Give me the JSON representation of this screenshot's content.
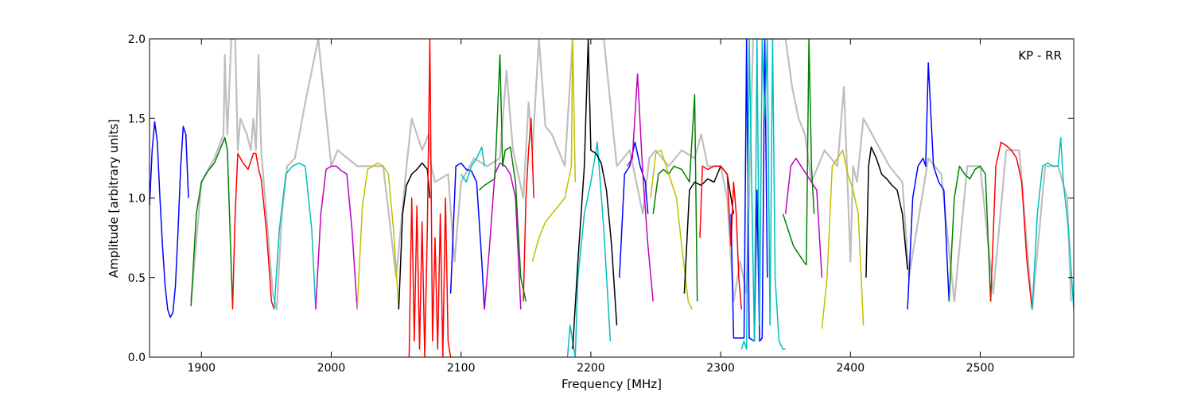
{
  "chart_data": {
    "type": "line",
    "title": "",
    "xlabel": "Frequency [MHz]",
    "ylabel": "Amplitude [arbitrary units]",
    "annotation": "KP - RR",
    "xlim": [
      1860,
      2572
    ],
    "ylim": [
      0.0,
      2.0
    ],
    "xticks": [
      1900,
      2000,
      2100,
      2200,
      2300,
      2400,
      2500
    ],
    "yticks": [
      0.0,
      0.5,
      1.0,
      1.5,
      2.0
    ],
    "ytick_labels": [
      "0.0",
      "0.5",
      "1.0",
      "1.5",
      "2.0"
    ],
    "grid": false,
    "background": {
      "color": "#bfbfbf",
      "x": [
        1892,
        1900,
        1910,
        1917,
        1918,
        1919,
        1920,
        1923,
        1926,
        1928,
        1930,
        1935,
        1938,
        1940,
        1942,
        1944,
        1946,
        1950,
        1955,
        1958,
        1962,
        1966,
        1972,
        1980,
        1990,
        2000,
        2005,
        2020,
        2040,
        2050,
        2058,
        2062,
        2070,
        2075,
        2077,
        2080,
        2090,
        2095,
        2100,
        2110,
        2120,
        2130,
        2135,
        2140,
        2148,
        2152,
        2155,
        2160,
        2165,
        2170,
        2180,
        2186,
        2190,
        2195,
        2200,
        2205,
        2210,
        2215,
        2220,
        2230,
        2240,
        2245,
        2250,
        2260,
        2270,
        2280,
        2285,
        2290,
        2300,
        2305,
        2310,
        2315,
        2320,
        2325,
        2330,
        2335,
        2340,
        2345,
        2350,
        2355,
        2360,
        2365,
        2370,
        2380,
        2390,
        2395,
        2400,
        2402,
        2405,
        2410,
        2420,
        2430,
        2440,
        2445,
        2460,
        2470,
        2480,
        2490,
        2500,
        2510,
        2520,
        2530,
        2540,
        2550,
        2560,
        2567,
        2570
      ],
      "y": [
        0.35,
        1.1,
        1.25,
        1.4,
        1.9,
        1.6,
        1.4,
        2.0,
        2.0,
        1.3,
        1.5,
        1.4,
        1.3,
        1.5,
        1.3,
        1.9,
        1.3,
        0.9,
        0.4,
        0.3,
        0.9,
        1.2,
        1.25,
        1.6,
        2.0,
        1.2,
        1.3,
        1.2,
        1.2,
        0.5,
        1.2,
        1.5,
        1.3,
        1.4,
        1.2,
        1.1,
        1.15,
        0.6,
        1.1,
        1.25,
        1.2,
        1.25,
        1.8,
        1.3,
        1.0,
        1.6,
        1.3,
        2.0,
        1.45,
        1.4,
        1.2,
        2.0,
        2.0,
        2.0,
        2.0,
        2.0,
        2.0,
        1.6,
        1.2,
        1.3,
        0.9,
        1.25,
        1.3,
        1.2,
        1.3,
        1.25,
        1.4,
        1.2,
        1.2,
        1.0,
        0.35,
        0.6,
        0.4,
        2.0,
        2.0,
        2.0,
        2.0,
        2.0,
        2.0,
        1.7,
        1.5,
        1.4,
        1.1,
        1.3,
        1.2,
        1.7,
        0.6,
        1.2,
        1.1,
        1.5,
        1.35,
        1.2,
        1.1,
        0.5,
        1.25,
        1.15,
        0.35,
        1.2,
        1.2,
        0.4,
        1.3,
        1.3,
        0.3,
        1.2,
        1.2,
        1.0,
        0.35
      ]
    },
    "series": [
      {
        "color": "#0000ff",
        "x": [
          1860,
          1862,
          1864,
          1866,
          1868,
          1870,
          1872,
          1874,
          1876,
          1878,
          1880,
          1882,
          1884,
          1886,
          1888,
          1890
        ],
        "y": [
          0.95,
          1.3,
          1.48,
          1.35,
          1.0,
          0.7,
          0.45,
          0.3,
          0.25,
          0.28,
          0.45,
          0.8,
          1.2,
          1.45,
          1.4,
          1.0
        ]
      },
      {
        "color": "#008000",
        "x": [
          1892,
          1896,
          1900,
          1905,
          1910,
          1915,
          1918,
          1920,
          1922,
          1924
        ],
        "y": [
          0.32,
          0.9,
          1.1,
          1.17,
          1.22,
          1.32,
          1.38,
          1.3,
          0.8,
          0.32
        ]
      },
      {
        "color": "#ff0000",
        "x": [
          1924,
          1926,
          1928,
          1932,
          1936,
          1940,
          1942,
          1944,
          1946,
          1950,
          1954,
          1956
        ],
        "y": [
          0.3,
          0.9,
          1.28,
          1.22,
          1.18,
          1.28,
          1.28,
          1.18,
          1.12,
          0.8,
          0.35,
          0.3
        ]
      },
      {
        "color": "#00bfbf",
        "x": [
          1956,
          1960,
          1965,
          1970,
          1975,
          1980,
          1985,
          1988
        ],
        "y": [
          0.3,
          0.8,
          1.15,
          1.2,
          1.22,
          1.2,
          0.8,
          0.3
        ]
      },
      {
        "color": "#bf00bf",
        "x": [
          1988,
          1992,
          1996,
          2000,
          2004,
          2008,
          2012,
          2016,
          2020
        ],
        "y": [
          0.3,
          0.9,
          1.18,
          1.2,
          1.2,
          1.17,
          1.15,
          0.8,
          0.3
        ]
      },
      {
        "color": "#bfbf00",
        "x": [
          2020,
          2024,
          2028,
          2032,
          2036,
          2040,
          2044,
          2048,
          2052
        ],
        "y": [
          0.3,
          0.95,
          1.18,
          1.2,
          1.22,
          1.2,
          1.15,
          0.8,
          0.3
        ]
      },
      {
        "color": "#000000",
        "x": [
          2052,
          2055,
          2058,
          2062,
          2066,
          2070,
          2074,
          2076
        ],
        "y": [
          0.3,
          0.9,
          1.08,
          1.15,
          1.18,
          1.22,
          1.18,
          1.0
        ]
      },
      {
        "color": "#ff0000",
        "x": [
          2060,
          2062,
          2064,
          2066,
          2068,
          2070,
          2072,
          2074,
          2076,
          2078,
          2080,
          2082,
          2084,
          2086,
          2088,
          2090,
          2092
        ],
        "y": [
          0.0,
          1.0,
          0.1,
          0.95,
          0.05,
          0.85,
          0.0,
          0.8,
          2.0,
          0.1,
          0.75,
          0.05,
          0.9,
          0.0,
          1.0,
          0.1,
          0.0
        ]
      },
      {
        "color": "#0000ff",
        "x": [
          2092,
          2096,
          2100,
          2104,
          2108,
          2112,
          2116,
          2118
        ],
        "y": [
          0.4,
          1.2,
          1.22,
          1.18,
          1.17,
          1.1,
          0.6,
          0.3
        ]
      },
      {
        "color": "#00bfbf",
        "x": [
          2100,
          2104,
          2108,
          2112,
          2116,
          2118
        ],
        "y": [
          1.15,
          1.1,
          1.2,
          1.25,
          1.32,
          1.2
        ]
      },
      {
        "color": "#bf00bf",
        "x": [
          2118,
          2122,
          2126,
          2130,
          2134,
          2138,
          2142,
          2146
        ],
        "y": [
          0.3,
          0.7,
          1.15,
          1.22,
          1.2,
          1.15,
          1.0,
          0.3
        ]
      },
      {
        "color": "#008000",
        "x": [
          2114,
          2118,
          2122,
          2126,
          2130,
          2132,
          2134,
          2138,
          2142,
          2146,
          2150
        ],
        "y": [
          1.05,
          1.08,
          1.1,
          1.12,
          1.9,
          1.2,
          1.3,
          1.32,
          1.1,
          0.5,
          0.35
        ]
      },
      {
        "color": "#ff0000",
        "x": [
          2148,
          2150,
          2152,
          2154,
          2156
        ],
        "y": [
          0.35,
          1.0,
          1.3,
          1.5,
          1.0
        ]
      },
      {
        "color": "#bfbf00",
        "x": [
          2155,
          2160,
          2165,
          2170,
          2175,
          2180,
          2185,
          2186,
          2188
        ],
        "y": [
          0.6,
          0.75,
          0.85,
          0.9,
          0.95,
          1.0,
          1.2,
          2.0,
          1.1
        ]
      },
      {
        "color": "#00bfbf",
        "x": [
          2182,
          2184,
          2186,
          2188,
          2190,
          2195,
          2200,
          2205,
          2210,
          2215
        ],
        "y": [
          0.0,
          0.2,
          0.1,
          0.0,
          0.5,
          0.9,
          1.1,
          1.35,
          0.8,
          0.1
        ]
      },
      {
        "color": "#000000",
        "x": [
          2186,
          2190,
          2195,
          2198,
          2200,
          2204,
          2208,
          2212,
          2216,
          2220
        ],
        "y": [
          0.05,
          0.6,
          1.2,
          2.0,
          1.3,
          1.28,
          1.22,
          1.05,
          0.7,
          0.2
        ]
      },
      {
        "color": "#0000ff",
        "x": [
          2222,
          2226,
          2230,
          2234,
          2238,
          2242,
          2244
        ],
        "y": [
          0.5,
          1.15,
          1.2,
          1.35,
          1.2,
          1.1,
          0.9
        ]
      },
      {
        "color": "#bf00bf",
        "x": [
          2228,
          2232,
          2236,
          2240,
          2244,
          2248
        ],
        "y": [
          1.2,
          1.25,
          1.78,
          1.15,
          0.7,
          0.35
        ]
      },
      {
        "color": "#008000",
        "x": [
          2248,
          2252,
          2256,
          2260,
          2264,
          2270,
          2276,
          2280,
          2282
        ],
        "y": [
          0.9,
          1.15,
          1.18,
          1.15,
          1.2,
          1.18,
          1.1,
          1.65,
          0.35
        ]
      },
      {
        "color": "#bfbf00",
        "x": [
          2246,
          2250,
          2254,
          2258,
          2262,
          2266,
          2270,
          2275,
          2278
        ],
        "y": [
          1.0,
          1.28,
          1.3,
          1.2,
          1.1,
          1.0,
          0.7,
          0.35,
          0.3
        ]
      },
      {
        "color": "#000000",
        "x": [
          2272,
          2276,
          2280,
          2285,
          2290,
          2295,
          2300,
          2305,
          2310
        ],
        "y": [
          0.4,
          1.05,
          1.1,
          1.08,
          1.12,
          1.1,
          1.2,
          1.15,
          0.9
        ]
      },
      {
        "color": "#ff0000",
        "x": [
          2284,
          2286,
          2290,
          2295,
          2300,
          2305,
          2308,
          2310,
          2312,
          2314,
          2316
        ],
        "y": [
          0.75,
          1.2,
          1.18,
          1.2,
          1.2,
          1.15,
          0.7,
          1.1,
          0.9,
          0.5,
          0.3
        ]
      },
      {
        "color": "#0000ff",
        "x": [
          2308,
          2310,
          2312,
          2315,
          2318,
          2320,
          2322,
          2326,
          2328,
          2330,
          2332,
          2334,
          2336
        ],
        "y": [
          0.9,
          0.12,
          0.12,
          0.12,
          0.12,
          2.0,
          0.12,
          0.1,
          1.05,
          0.1,
          0.12,
          2.0,
          0.5
        ]
      },
      {
        "color": "#00bfbf",
        "x": [
          2316,
          2318,
          2320,
          2322,
          2326,
          2328,
          2330,
          2332,
          2334,
          2336,
          2338,
          2340,
          2342,
          2345,
          2348,
          2350
        ],
        "y": [
          0.05,
          0.1,
          0.05,
          2.0,
          0.1,
          2.0,
          0.2,
          2.0,
          1.5,
          2.0,
          0.2,
          2.0,
          0.5,
          0.1,
          0.05,
          0.05
        ]
      },
      {
        "color": "#008000",
        "x": [
          2348,
          2352,
          2356,
          2360,
          2364,
          2366,
          2368,
          2370,
          2372
        ],
        "y": [
          0.9,
          0.8,
          0.7,
          0.65,
          0.6,
          0.58,
          2.0,
          1.2,
          0.9
        ]
      },
      {
        "color": "#bf00bf",
        "x": [
          2350,
          2354,
          2358,
          2362,
          2366,
          2370,
          2374,
          2378
        ],
        "y": [
          0.9,
          1.2,
          1.25,
          1.2,
          1.15,
          1.1,
          1.05,
          0.5
        ]
      },
      {
        "color": "#bfbf00",
        "x": [
          2378,
          2382,
          2386,
          2390,
          2394,
          2398,
          2402,
          2406,
          2410
        ],
        "y": [
          0.18,
          0.5,
          1.2,
          1.25,
          1.3,
          1.15,
          1.05,
          0.9,
          0.2
        ]
      },
      {
        "color": "#000000",
        "x": [
          2412,
          2414,
          2416,
          2420,
          2424,
          2428,
          2432,
          2436,
          2440,
          2444
        ],
        "y": [
          0.5,
          1.2,
          1.32,
          1.25,
          1.15,
          1.12,
          1.08,
          1.05,
          0.9,
          0.55
        ]
      },
      {
        "color": "#0000ff",
        "x": [
          2444,
          2448,
          2452,
          2456,
          2458,
          2460,
          2464,
          2468,
          2472,
          2476
        ],
        "y": [
          0.3,
          1.0,
          1.2,
          1.25,
          1.2,
          1.85,
          1.2,
          1.1,
          1.05,
          0.35
        ]
      },
      {
        "color": "#008000",
        "x": [
          2476,
          2480,
          2484,
          2488,
          2492,
          2496,
          2500,
          2504,
          2508
        ],
        "y": [
          0.35,
          1.0,
          1.2,
          1.15,
          1.12,
          1.18,
          1.2,
          1.15,
          0.35
        ]
      },
      {
        "color": "#ff0000",
        "x": [
          2508,
          2512,
          2516,
          2520,
          2524,
          2528,
          2532,
          2536,
          2540
        ],
        "y": [
          0.35,
          1.2,
          1.35,
          1.33,
          1.3,
          1.25,
          1.1,
          0.6,
          0.3
        ]
      },
      {
        "color": "#00bfbf",
        "x": [
          2540,
          2544,
          2548,
          2552,
          2556,
          2560,
          2562,
          2564,
          2568,
          2572
        ],
        "y": [
          0.3,
          0.9,
          1.2,
          1.22,
          1.2,
          1.2,
          1.38,
          1.1,
          0.8,
          0.3
        ]
      }
    ]
  }
}
